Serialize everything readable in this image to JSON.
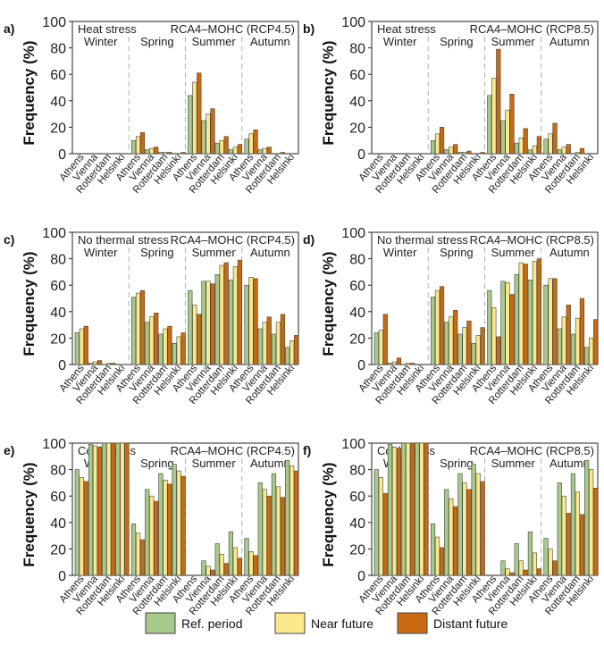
{
  "figure": {
    "ylabel": "Frequency (%)",
    "seasons": [
      "Winter",
      "Spring",
      "Summer",
      "Autumn"
    ],
    "cities": [
      "Athens",
      "Vienna",
      "Rotterdam",
      "Helsinki"
    ],
    "yticks": [
      "0",
      "20",
      "40",
      "60",
      "80",
      "100"
    ],
    "colors": {
      "ref": "#a7c98a",
      "near": "#fbe78c",
      "distant": "#c96a12"
    },
    "legend": [
      {
        "key": "ref",
        "label": "Ref. period"
      },
      {
        "key": "near",
        "label": "Near future"
      },
      {
        "key": "distant",
        "label": "Distant future"
      }
    ]
  },
  "chart_data": [
    {
      "type": "bar",
      "panel": "a)",
      "stress": "Heat stress",
      "model": "RCA4–MOHC (RCP4.5)",
      "ylim": [
        0,
        100
      ],
      "values": [
        [
          [
            0,
            0,
            0
          ],
          [
            0,
            0,
            0
          ],
          [
            0,
            0,
            0
          ],
          [
            0,
            0,
            0
          ]
        ],
        [
          [
            10,
            13,
            16
          ],
          [
            3,
            4,
            5
          ],
          [
            1,
            1,
            1
          ],
          [
            0,
            0,
            1
          ]
        ],
        [
          [
            44,
            54,
            61
          ],
          [
            25,
            30,
            34
          ],
          [
            8,
            10,
            13
          ],
          [
            3,
            5,
            7
          ]
        ],
        [
          [
            11,
            15,
            18
          ],
          [
            3,
            4,
            5
          ],
          [
            0,
            0,
            1
          ],
          [
            0,
            0,
            0
          ]
        ]
      ]
    },
    {
      "type": "bar",
      "panel": "b)",
      "stress": "Heat stress",
      "model": "RCA4–MOHC (RCP8.5)",
      "ylim": [
        0,
        100
      ],
      "values": [
        [
          [
            0,
            0,
            0
          ],
          [
            0,
            0,
            0
          ],
          [
            0,
            0,
            0
          ],
          [
            0,
            0,
            0
          ]
        ],
        [
          [
            10,
            15,
            20
          ],
          [
            3,
            5,
            7
          ],
          [
            1,
            1,
            2
          ],
          [
            0,
            0,
            1
          ]
        ],
        [
          [
            44,
            57,
            79
          ],
          [
            25,
            33,
            45
          ],
          [
            8,
            12,
            19
          ],
          [
            3,
            6,
            13
          ]
        ],
        [
          [
            11,
            15,
            23
          ],
          [
            3,
            5,
            7
          ],
          [
            0,
            1,
            4
          ],
          [
            0,
            0,
            0
          ]
        ]
      ]
    },
    {
      "type": "bar",
      "panel": "c)",
      "stress": "No thermal stress",
      "model": "RCA4–MOHC (RCP4.5)",
      "ylim": [
        0,
        100
      ],
      "values": [
        [
          [
            24,
            27,
            29
          ],
          [
            1,
            2,
            3
          ],
          [
            0,
            1,
            1
          ],
          [
            0,
            0,
            0
          ]
        ],
        [
          [
            51,
            54,
            56
          ],
          [
            32,
            36,
            39
          ],
          [
            23,
            27,
            29
          ],
          [
            16,
            21,
            24
          ]
        ],
        [
          [
            56,
            45,
            38
          ],
          [
            63,
            63,
            61
          ],
          [
            68,
            75,
            77
          ],
          [
            64,
            74,
            79
          ]
        ],
        [
          [
            60,
            66,
            65
          ],
          [
            27,
            32,
            36
          ],
          [
            23,
            32,
            38
          ],
          [
            13,
            18,
            22
          ]
        ]
      ]
    },
    {
      "type": "bar",
      "panel": "d)",
      "stress": "No thermal stress",
      "model": "RCA4–MOHC (RCP8.5)",
      "ylim": [
        0,
        100
      ],
      "values": [
        [
          [
            24,
            26,
            38
          ],
          [
            1,
            2,
            5
          ],
          [
            0,
            1,
            1
          ],
          [
            0,
            0,
            0
          ]
        ],
        [
          [
            51,
            56,
            59
          ],
          [
            32,
            36,
            41
          ],
          [
            23,
            28,
            33
          ],
          [
            16,
            22,
            28
          ]
        ],
        [
          [
            56,
            43,
            21
          ],
          [
            63,
            62,
            53
          ],
          [
            68,
            77,
            76
          ],
          [
            64,
            78,
            80
          ]
        ],
        [
          [
            60,
            65,
            65
          ],
          [
            27,
            36,
            45
          ],
          [
            23,
            35,
            50
          ],
          [
            13,
            20,
            34
          ]
        ]
      ]
    },
    {
      "type": "bar",
      "panel": "e)",
      "stress": "Cold stress",
      "model": "RCA4–MOHC (RCP4.5)",
      "ylim": [
        0,
        100
      ],
      "values": [
        [
          [
            80,
            74,
            71
          ],
          [
            99,
            98,
            97
          ],
          [
            100,
            100,
            100
          ],
          [
            100,
            100,
            100
          ]
        ],
        [
          [
            39,
            32,
            27
          ],
          [
            65,
            60,
            56
          ],
          [
            77,
            72,
            69
          ],
          [
            84,
            79,
            75
          ]
        ],
        [
          [
            0,
            0,
            0
          ],
          [
            11,
            7,
            4
          ],
          [
            24,
            16,
            9
          ],
          [
            33,
            21,
            13
          ]
        ],
        [
          [
            28,
            18,
            15
          ],
          [
            70,
            65,
            60
          ],
          [
            77,
            67,
            59
          ],
          [
            87,
            83,
            79
          ]
        ]
      ]
    },
    {
      "type": "bar",
      "panel": "f)",
      "stress": "Cold stress",
      "model": "RCA4–MOHC (RCP8.5)",
      "ylim": [
        0,
        100
      ],
      "values": [
        [
          [
            80,
            74,
            62
          ],
          [
            99,
            97,
            96
          ],
          [
            100,
            100,
            100
          ],
          [
            100,
            100,
            100
          ]
        ],
        [
          [
            39,
            29,
            21
          ],
          [
            65,
            58,
            52
          ],
          [
            77,
            70,
            65
          ],
          [
            84,
            77,
            71
          ]
        ],
        [
          [
            0,
            0,
            0
          ],
          [
            11,
            5,
            2
          ],
          [
            24,
            11,
            4
          ],
          [
            33,
            17,
            5
          ]
        ],
        [
          [
            28,
            20,
            11
          ],
          [
            70,
            60,
            47
          ],
          [
            77,
            63,
            46
          ],
          [
            87,
            80,
            66
          ]
        ]
      ]
    }
  ]
}
